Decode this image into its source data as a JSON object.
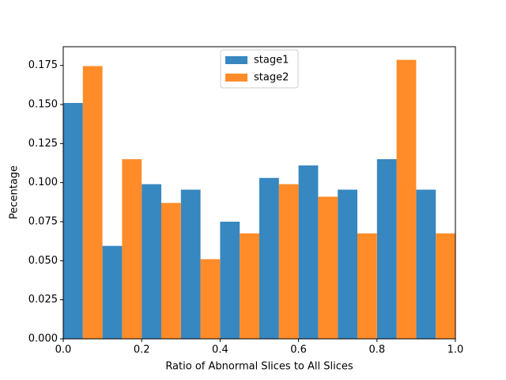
{
  "chart_data": {
    "type": "histogram",
    "xlabel": "Ratio of Abnormal Slices to All Slices",
    "ylabel": "Pecentage",
    "bins": [
      0.0,
      0.1,
      0.2,
      0.3,
      0.4,
      0.5,
      0.6,
      0.7,
      0.8,
      0.9,
      1.0
    ],
    "series": [
      {
        "name": "stage1",
        "color": "#3787c0",
        "values": [
          0.151,
          0.0595,
          0.099,
          0.0955,
          0.075,
          0.103,
          0.111,
          0.0955,
          0.115,
          0.0955
        ]
      },
      {
        "name": "stage2",
        "color": "#ff8c28",
        "values": [
          0.1746,
          0.115,
          0.087,
          0.051,
          0.0675,
          0.099,
          0.091,
          0.0675,
          0.1786,
          0.0675
        ]
      }
    ],
    "xlim": [
      0,
      1
    ],
    "ylim": [
      0,
      0.187
    ],
    "xticks": [
      {
        "value": 0,
        "label": "0.0"
      },
      {
        "value": 0.2,
        "label": "0.2"
      },
      {
        "value": 0.4,
        "label": "0.4"
      },
      {
        "value": 0.6,
        "label": "0.6"
      },
      {
        "value": 0.8,
        "label": "0.8"
      },
      {
        "value": 1,
        "label": "1.0"
      }
    ],
    "yticks": [
      {
        "value": 0,
        "label": "0.000"
      },
      {
        "value": 0.025,
        "label": "0.025"
      },
      {
        "value": 0.05,
        "label": "0.050"
      },
      {
        "value": 0.075,
        "label": "0.075"
      },
      {
        "value": 0.1,
        "label": "0.100"
      },
      {
        "value": 0.125,
        "label": "0.125"
      },
      {
        "value": 0.15,
        "label": "0.150"
      },
      {
        "value": 0.175,
        "label": "0.175"
      }
    ],
    "legend": "upper center"
  }
}
